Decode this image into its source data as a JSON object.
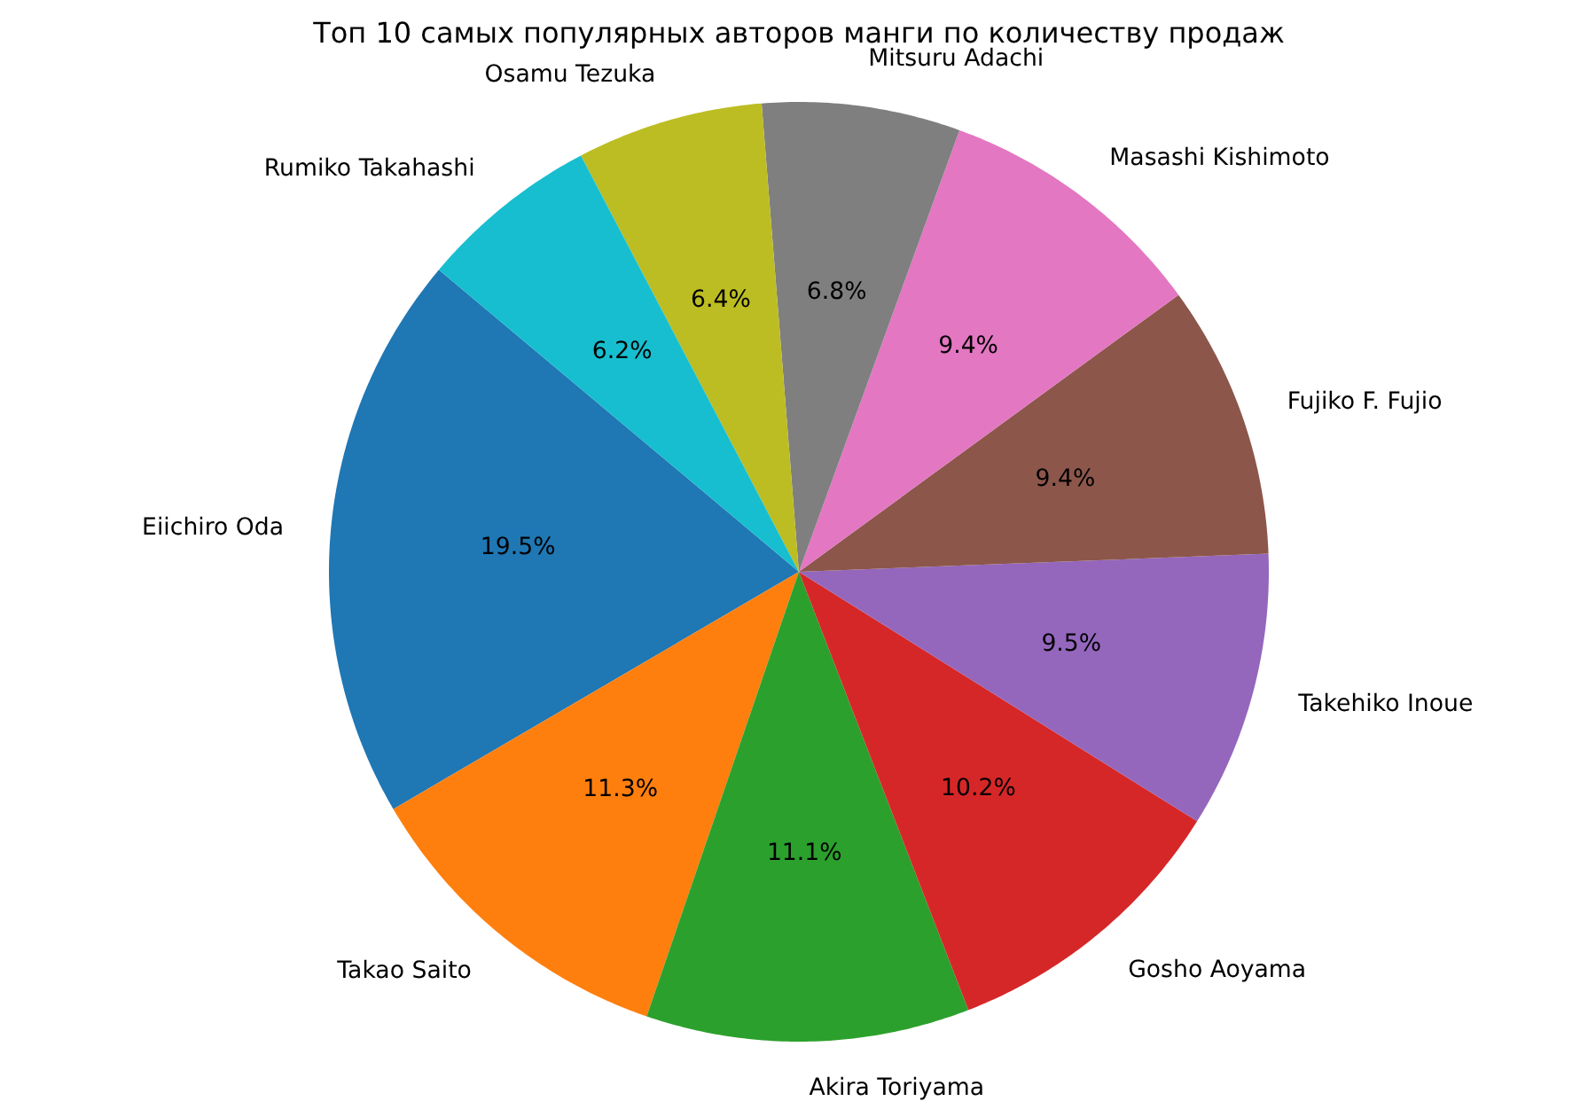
{
  "chart_data": {
    "type": "pie",
    "title": "Топ 10 самых популярных авторов манги по количеству продаж",
    "categories": [
      "Eiichiro Oda",
      "Takao Saito",
      "Akira Toriyama",
      "Gosho Aoyama",
      "Takehiko Inoue",
      "Fujiko F. Fujio",
      "Masashi Kishimoto",
      "Mitsuru Adachi",
      "Osamu Tezuka",
      "Rumiko Takahashi"
    ],
    "values": [
      19.5,
      11.3,
      11.1,
      10.2,
      9.5,
      9.4,
      9.4,
      6.8,
      6.4,
      6.2
    ],
    "value_labels": [
      "19.5%",
      "11.3%",
      "11.1%",
      "10.2%",
      "9.5%",
      "9.4%",
      "9.4%",
      "6.8%",
      "6.4%",
      "6.2%"
    ],
    "colors": [
      "#1f77b4",
      "#ff7f0e",
      "#2ca02c",
      "#d62728",
      "#9467bd",
      "#8c564b",
      "#e377c2",
      "#7f7f7f",
      "#bcbd22",
      "#17becf"
    ]
  }
}
